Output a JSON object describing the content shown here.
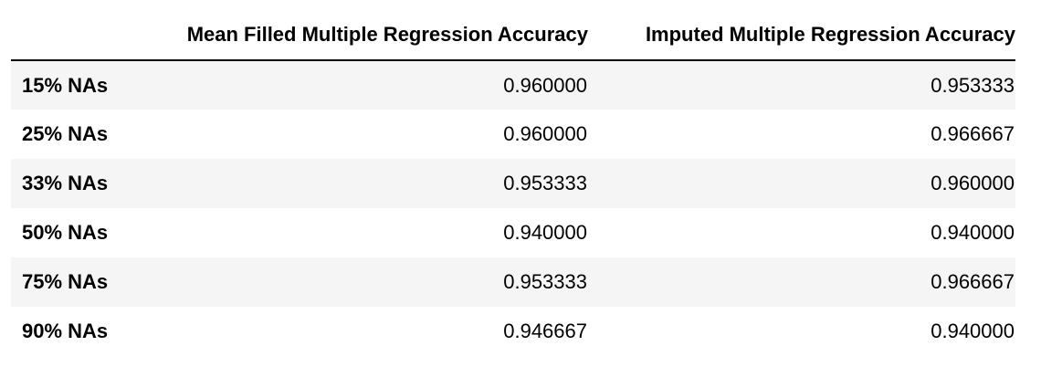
{
  "table": {
    "columns": [
      "",
      "Mean Filled Multiple Regression Accuracy",
      "Imputed Multiple Regression Accuracy"
    ],
    "rows": [
      {
        "label": "15% NAs",
        "mean_filled": "0.960000",
        "imputed": "0.953333"
      },
      {
        "label": "25% NAs",
        "mean_filled": "0.960000",
        "imputed": "0.966667"
      },
      {
        "label": "33% NAs",
        "mean_filled": "0.953333",
        "imputed": "0.960000"
      },
      {
        "label": "50% NAs",
        "mean_filled": "0.940000",
        "imputed": "0.940000"
      },
      {
        "label": "75% NAs",
        "mean_filled": "0.953333",
        "imputed": "0.966667"
      },
      {
        "label": "90% NAs",
        "mean_filled": "0.946667",
        "imputed": "0.940000"
      }
    ]
  },
  "chart_data": {
    "type": "table",
    "columns": [
      "Mean Filled Multiple Regression Accuracy",
      "Imputed Multiple Regression Accuracy"
    ],
    "index": [
      "15% NAs",
      "25% NAs",
      "33% NAs",
      "50% NAs",
      "75% NAs",
      "90% NAs"
    ],
    "values": [
      [
        0.96,
        0.953333
      ],
      [
        0.96,
        0.966667
      ],
      [
        0.953333,
        0.96
      ],
      [
        0.94,
        0.94
      ],
      [
        0.953333,
        0.966667
      ],
      [
        0.946667,
        0.94
      ]
    ]
  }
}
